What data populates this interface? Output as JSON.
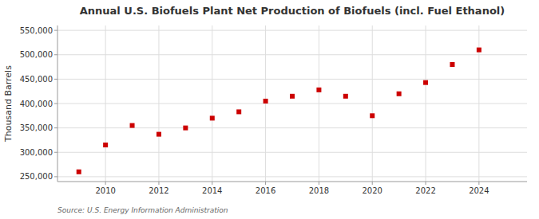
{
  "chart_data": {
    "type": "scatter",
    "title": "Annual U.S. Biofuels Plant Net Production of Biofuels (incl. Fuel Ethanol)",
    "y_label": "Thousand Barrels",
    "source": "Source: U.S. Energy Information Administration",
    "x": [
      2009,
      2010,
      2011,
      2012,
      2013,
      2014,
      2015,
      2016,
      2017,
      2018,
      2019,
      2020,
      2021,
      2022,
      2023,
      2024
    ],
    "values": [
      260000,
      315000,
      355000,
      337000,
      350000,
      370000,
      383000,
      405000,
      415000,
      428000,
      415000,
      375000,
      420000,
      443000,
      480000,
      510000
    ],
    "color": "#cc0000",
    "marker": "square",
    "xlim": [
      2008.2,
      2025.8
    ],
    "xticks": [
      2010,
      2012,
      2014,
      2016,
      2018,
      2020,
      2022,
      2024
    ],
    "ylim": [
      240000,
      560000
    ],
    "yticks": [
      {
        "value": 250000,
        "label": "250,000"
      },
      {
        "value": 300000,
        "label": "300,000"
      },
      {
        "value": 350000,
        "label": "350,000"
      },
      {
        "value": 400000,
        "label": "400,000"
      },
      {
        "value": 450000,
        "label": "450,000"
      },
      {
        "value": 500000,
        "label": "500,000"
      },
      {
        "value": 550000,
        "label": "550,000"
      }
    ],
    "grid": true
  }
}
